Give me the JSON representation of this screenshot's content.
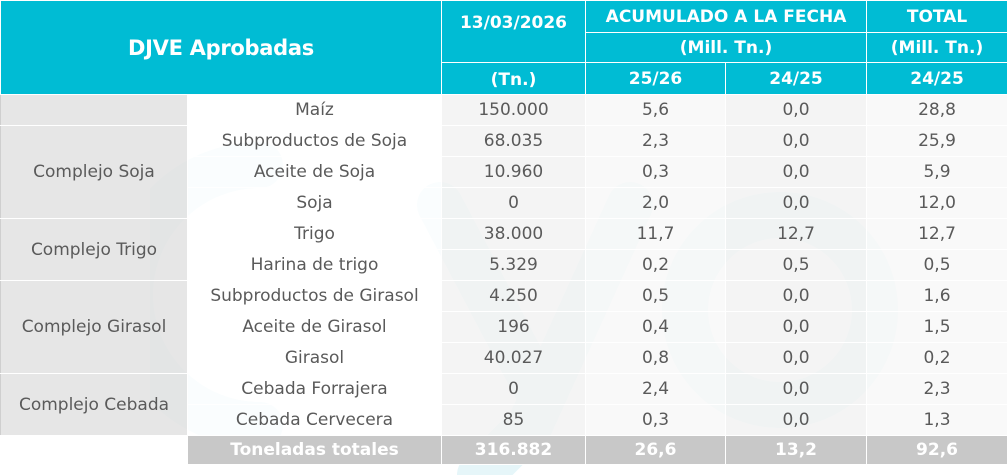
{
  "header": {
    "title": "DJVE Aprobadas",
    "date": "13/03/2026",
    "date_unit": "(Tn.)",
    "accum_title": "ACUMULADO A LA FECHA",
    "accum_unit": "(Mill. Tn.)",
    "total_title": "TOTAL",
    "total_unit": "(Mill. Tn.)",
    "col_2526": "25/26",
    "col_2425": "24/25",
    "col_total_2425": "24/25"
  },
  "chart_data": {
    "type": "table",
    "columns": [
      "13/03/2026 (Tn.)",
      "ACUMULADO A LA FECHA 25/26",
      "ACUMULADO A LA FECHA 24/25",
      "TOTAL 24/25"
    ],
    "groups": [
      {
        "name": "",
        "rows": [
          {
            "product": "Maíz",
            "day": "150.000",
            "acc_2526": "5,6",
            "acc_2425": "0,0",
            "total_2425": "28,8"
          }
        ]
      },
      {
        "name": "Complejo Soja",
        "rows": [
          {
            "product": "Subproductos de Soja",
            "day": "68.035",
            "acc_2526": "2,3",
            "acc_2425": "0,0",
            "total_2425": "25,9"
          },
          {
            "product": "Aceite de Soja",
            "day": "10.960",
            "acc_2526": "0,3",
            "acc_2425": "0,0",
            "total_2425": "5,9"
          },
          {
            "product": "Soja",
            "day": "0",
            "acc_2526": "2,0",
            "acc_2425": "0,0",
            "total_2425": "12,0"
          }
        ]
      },
      {
        "name": "Complejo Trigo",
        "rows": [
          {
            "product": "Trigo",
            "day": "38.000",
            "acc_2526": "11,7",
            "acc_2425": "12,7",
            "total_2425": "12,7"
          },
          {
            "product": "Harina de trigo",
            "day": "5.329",
            "acc_2526": "0,2",
            "acc_2425": "0,5",
            "total_2425": "0,5"
          }
        ]
      },
      {
        "name": "Complejo Girasol",
        "rows": [
          {
            "product": "Subproductos de Girasol",
            "day": "4.250",
            "acc_2526": "0,5",
            "acc_2425": "0,0",
            "total_2425": "1,6"
          },
          {
            "product": "Aceite de Girasol",
            "day": "196",
            "acc_2526": "0,4",
            "acc_2425": "0,0",
            "total_2425": "1,5"
          },
          {
            "product": "Girasol",
            "day": "40.027",
            "acc_2526": "0,8",
            "acc_2425": "0,0",
            "total_2425": "0,2"
          }
        ]
      },
      {
        "name": "Complejo Cebada",
        "rows": [
          {
            "product": "Cebada Forrajera",
            "day": "0",
            "acc_2526": "2,4",
            "acc_2425": "0,0",
            "total_2425": "2,3"
          },
          {
            "product": "Cebada Cervecera",
            "day": "85",
            "acc_2526": "0,3",
            "acc_2425": "0,0",
            "total_2425": "1,3"
          }
        ]
      }
    ],
    "totals": {
      "label": "Toneladas totales",
      "day": "316.882",
      "acc_2526": "26,6",
      "acc_2425": "13,2",
      "total_2425": "92,6"
    }
  }
}
